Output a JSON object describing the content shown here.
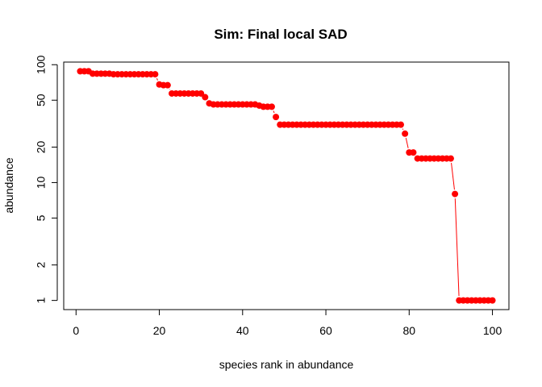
{
  "chart_data": {
    "type": "line",
    "title": "Sim: Final local SAD",
    "xlabel": "species rank in abundance",
    "ylabel": "abundance",
    "y_scale": "log",
    "xlim": [
      1,
      100
    ],
    "ylim": [
      1,
      88
    ],
    "x_ticks": [
      0,
      20,
      40,
      60,
      80,
      100
    ],
    "y_ticks": [
      1,
      2,
      5,
      10,
      20,
      50,
      100
    ],
    "grid": false,
    "legend": "none",
    "series": [
      {
        "color": "#ff0000",
        "marker": "filled-circle",
        "x": [
          1,
          2,
          3,
          4,
          5,
          6,
          7,
          8,
          9,
          10,
          11,
          12,
          13,
          14,
          15,
          16,
          17,
          18,
          19,
          20,
          21,
          22,
          23,
          24,
          25,
          26,
          27,
          28,
          29,
          30,
          31,
          32,
          33,
          34,
          35,
          36,
          37,
          38,
          39,
          40,
          41,
          42,
          43,
          44,
          45,
          46,
          47,
          48,
          49,
          50,
          51,
          52,
          53,
          54,
          55,
          56,
          57,
          58,
          59,
          60,
          61,
          62,
          63,
          64,
          65,
          66,
          67,
          68,
          69,
          70,
          71,
          72,
          73,
          74,
          75,
          76,
          77,
          78,
          79,
          80,
          81,
          82,
          83,
          84,
          85,
          86,
          87,
          88,
          89,
          90,
          91,
          92,
          93,
          94,
          95,
          96,
          97,
          98,
          99,
          100
        ],
        "values": [
          88,
          88,
          88,
          84,
          84,
          84,
          84,
          84,
          83,
          83,
          83,
          83,
          83,
          83,
          83,
          83,
          83,
          83,
          83,
          68,
          67,
          67,
          57,
          57,
          57,
          57,
          57,
          57,
          57,
          57,
          53,
          47,
          46,
          46,
          46,
          46,
          46,
          46,
          46,
          46,
          46,
          46,
          46,
          45,
          44,
          44,
          44,
          36,
          31,
          31,
          31,
          31,
          31,
          31,
          31,
          31,
          31,
          31,
          31,
          31,
          31,
          31,
          31,
          31,
          31,
          31,
          31,
          31,
          31,
          31,
          31,
          31,
          31,
          31,
          31,
          31,
          31,
          31,
          26,
          18,
          18,
          16,
          16,
          16,
          16,
          16,
          16,
          16,
          16,
          16,
          8,
          1,
          1,
          1,
          1,
          1,
          1,
          1,
          1,
          1
        ]
      }
    ]
  }
}
